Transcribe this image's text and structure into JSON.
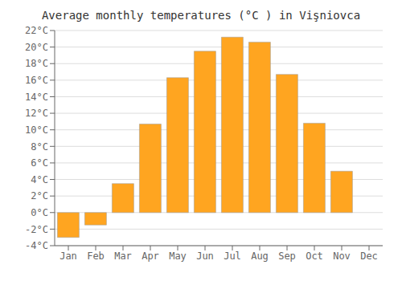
{
  "chart_data": {
    "type": "bar",
    "title": "Average monthly temperatures (°C ) in Vişniovca",
    "categories": [
      "Jan",
      "Feb",
      "Mar",
      "Apr",
      "May",
      "Jun",
      "Jul",
      "Aug",
      "Sep",
      "Oct",
      "Nov",
      "Dec"
    ],
    "values": [
      -3.0,
      -1.5,
      3.5,
      10.7,
      16.3,
      19.5,
      21.2,
      20.6,
      16.7,
      10.8,
      5.0,
      0.0
    ],
    "color": "#FFA520",
    "ylim": [
      -4,
      22
    ],
    "yticks": [
      {
        "value": -4,
        "label": "-4°C"
      },
      {
        "value": -2,
        "label": "-2°C"
      },
      {
        "value": 0,
        "label": "0°C"
      },
      {
        "value": 2,
        "label": "2°C"
      },
      {
        "value": 4,
        "label": "4°C"
      },
      {
        "value": 6,
        "label": "6°C"
      },
      {
        "value": 8,
        "label": "8°C"
      },
      {
        "value": 10,
        "label": "10°C"
      },
      {
        "value": 12,
        "label": "12°C"
      },
      {
        "value": 14,
        "label": "14°C"
      },
      {
        "value": 16,
        "label": "16°C"
      },
      {
        "value": 18,
        "label": "18°C"
      },
      {
        "value": 20,
        "label": "20°C"
      },
      {
        "value": 22,
        "label": "22°C"
      }
    ],
    "grid": true
  }
}
